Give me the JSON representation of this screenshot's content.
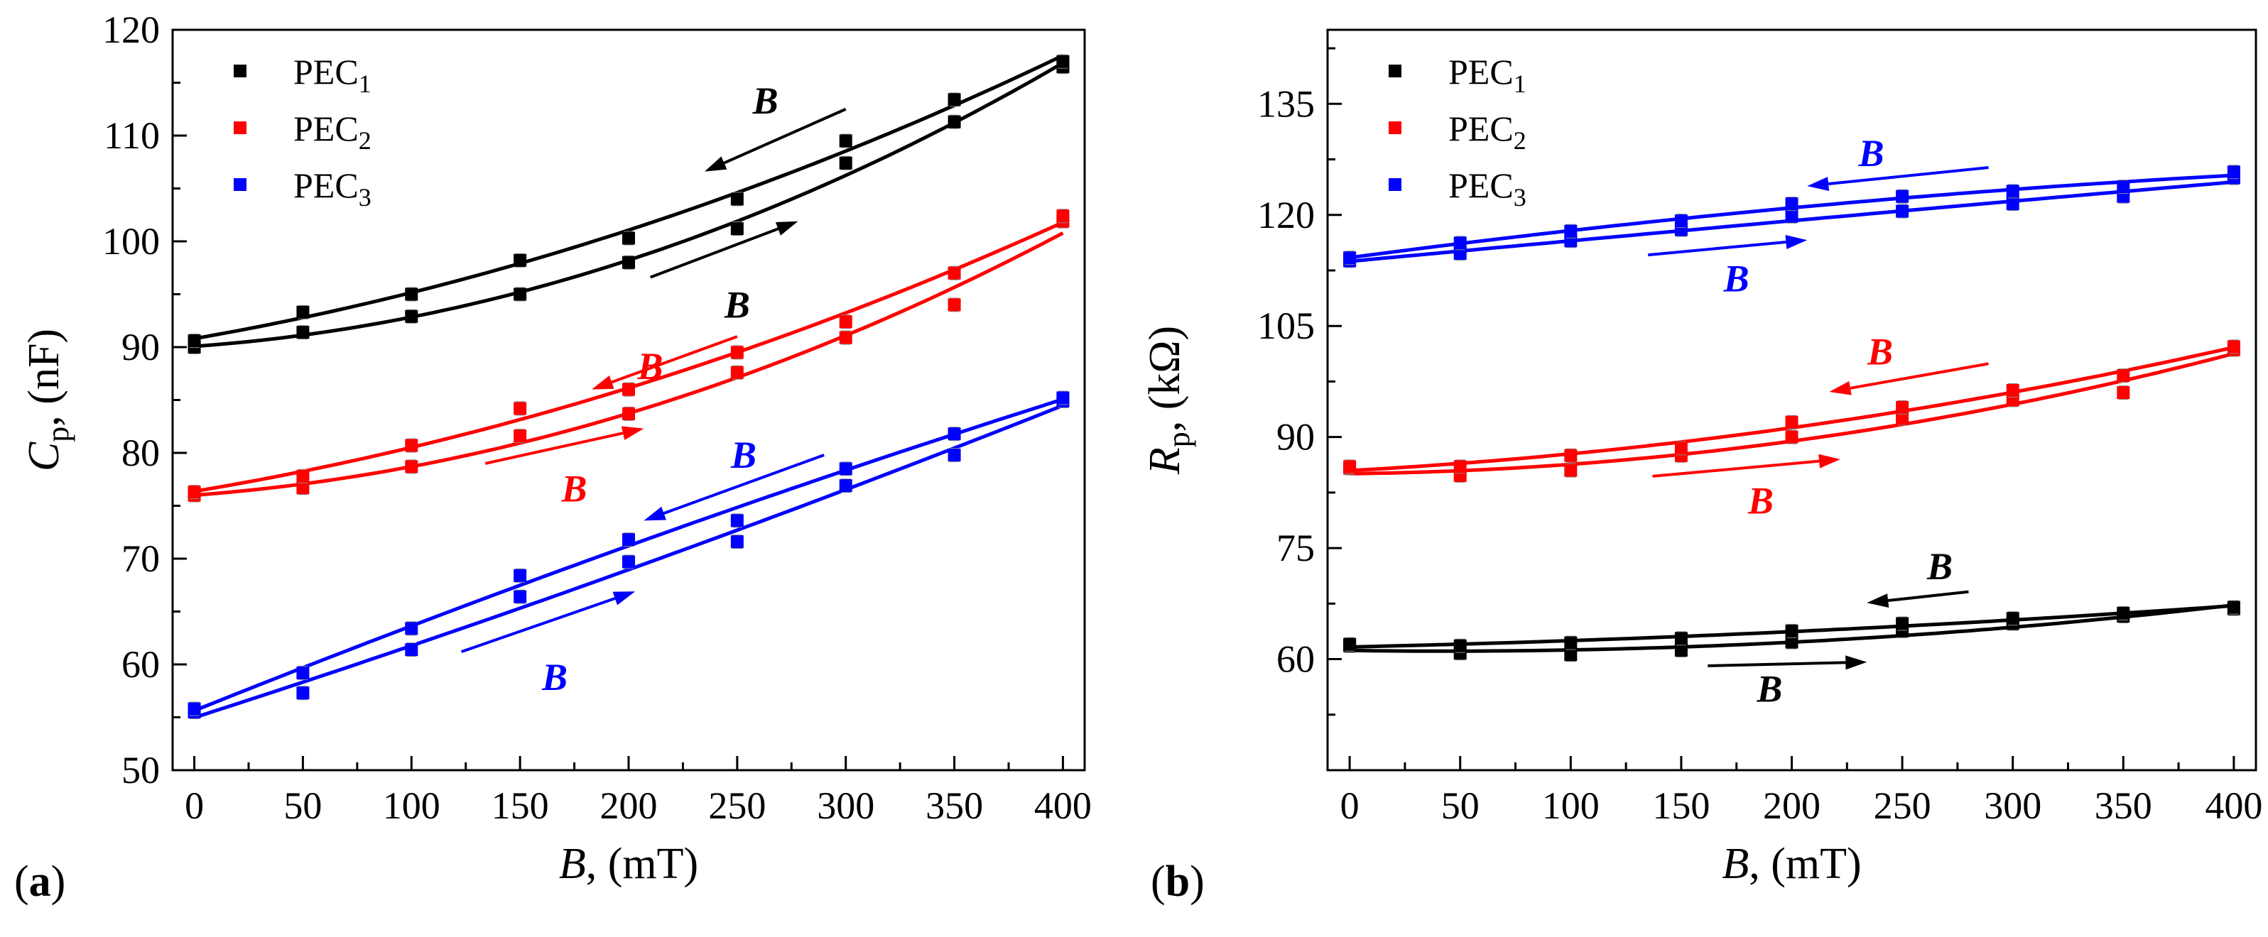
{
  "chart_data": [
    {
      "panel": "(a)",
      "type": "scatter",
      "title": "",
      "xlabel": "B, (mT)",
      "ylabel": "Cp, (nF)",
      "xlim": [
        -10,
        410
      ],
      "ylim": [
        50,
        120
      ],
      "xticks": [
        0,
        50,
        100,
        150,
        200,
        250,
        300,
        350,
        400
      ],
      "yticks": [
        50,
        60,
        70,
        80,
        90,
        100,
        110,
        120
      ],
      "legend_position": "top-left",
      "arrow_label": "B",
      "x": [
        0,
        50,
        100,
        150,
        200,
        250,
        300,
        350,
        400
      ],
      "series": [
        {
          "name": "PEC1",
          "label_base": "PEC",
          "label_sub": "1",
          "color": "#000000",
          "increasing": [
            90.0,
            91.4,
            92.9,
            95.0,
            98.0,
            101.2,
            107.4,
            111.3,
            116.5
          ],
          "decreasing": [
            90.6,
            93.3,
            95.0,
            98.2,
            100.3,
            104.0,
            109.5,
            113.4,
            117.0
          ]
        },
        {
          "name": "PEC2",
          "label_base": "PEC",
          "label_sub": "2",
          "color": "#ff0000",
          "increasing": [
            76.0,
            76.7,
            78.7,
            81.6,
            83.7,
            87.6,
            90.9,
            94.0,
            101.9
          ],
          "decreasing": [
            76.3,
            77.8,
            80.7,
            84.2,
            86.0,
            89.5,
            92.4,
            97.0,
            102.4
          ]
        },
        {
          "name": "PEC3",
          "label_base": "PEC",
          "label_sub": "3",
          "color": "#0000ff",
          "increasing": [
            55.5,
            57.3,
            61.4,
            66.4,
            69.7,
            71.6,
            76.9,
            79.8,
            84.9
          ],
          "decreasing": [
            55.8,
            59.2,
            63.4,
            68.4,
            71.8,
            73.6,
            78.5,
            81.8,
            85.2
          ]
        }
      ]
    },
    {
      "panel": "(b)",
      "type": "scatter",
      "title": "",
      "xlabel": "B, (mT)",
      "ylabel": "Rp, (kΩ)",
      "xlim": [
        -10,
        410
      ],
      "ylim": [
        45,
        145
      ],
      "xticks": [
        0,
        50,
        100,
        150,
        200,
        250,
        300,
        350,
        400
      ],
      "yticks": [
        60,
        75,
        90,
        105,
        120,
        135
      ],
      "legend_position": "top-left",
      "arrow_label": "B",
      "x": [
        0,
        50,
        100,
        150,
        200,
        250,
        300,
        350,
        400
      ],
      "series": [
        {
          "name": "PEC1",
          "label_base": "PEC",
          "label_sub": "1",
          "color": "#000000",
          "increasing": [
            61.8,
            60.8,
            60.6,
            61.2,
            62.3,
            63.8,
            64.8,
            65.8,
            66.8
          ],
          "decreasing": [
            62.0,
            61.8,
            62.2,
            62.8,
            63.8,
            64.8,
            65.5,
            66.2,
            67.0
          ]
        },
        {
          "name": "PEC2",
          "label_base": "PEC",
          "label_sub": "2",
          "color": "#ff0000",
          "increasing": [
            85.8,
            84.8,
            85.5,
            87.5,
            90.0,
            92.5,
            95.0,
            96.0,
            101.8
          ],
          "decreasing": [
            86.0,
            86.0,
            87.5,
            88.5,
            92.0,
            94.0,
            96.3,
            98.3,
            102.2
          ]
        },
        {
          "name": "PEC3",
          "label_base": "PEC",
          "label_sub": "3",
          "color": "#0000ff",
          "increasing": [
            113.8,
            114.8,
            116.5,
            118.0,
            119.8,
            120.5,
            121.5,
            122.5,
            125.0
          ],
          "decreasing": [
            114.2,
            116.2,
            117.8,
            119.2,
            121.5,
            122.5,
            123.2,
            123.8,
            125.8
          ]
        }
      ]
    }
  ]
}
